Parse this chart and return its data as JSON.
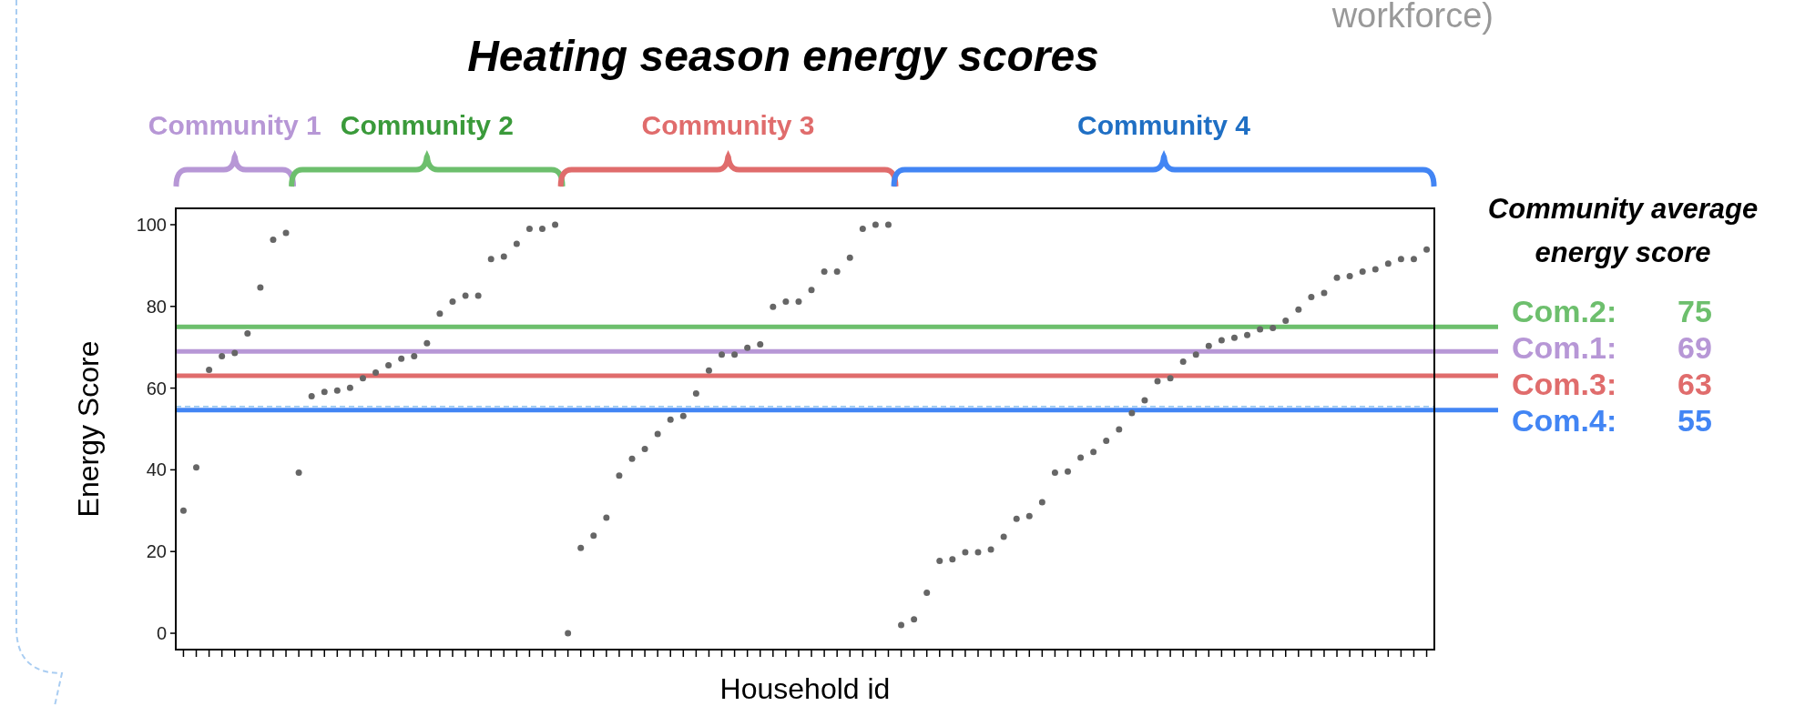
{
  "chart_data": {
    "type": "scatter",
    "title": "Heating season energy scores",
    "xlabel": "Household id",
    "ylabel": "Energy Score",
    "annotations": [
      "workforce)",
      "Community average energy score",
      "Community 1",
      "Community 2",
      "Community 3",
      "Community 4"
    ],
    "marker": "circle",
    "categories": [
      null,
      null,
      null,
      null,
      null,
      null,
      null,
      null,
      null,
      null,
      null,
      null,
      null,
      null,
      null,
      null,
      null,
      null,
      null,
      null,
      null,
      null,
      null,
      null,
      null,
      null,
      null,
      null,
      null,
      null,
      null,
      null,
      null,
      null,
      null,
      null,
      null,
      null,
      null,
      null,
      null,
      null,
      null,
      null,
      null,
      null,
      null,
      null,
      null,
      null,
      null,
      null,
      null,
      null,
      null,
      null,
      null,
      null,
      null,
      null,
      null,
      null,
      null,
      null,
      null,
      null,
      null,
      null,
      null,
      null,
      null,
      null,
      null,
      null,
      null,
      null,
      null,
      null,
      null,
      null,
      null,
      null,
      null,
      null,
      null,
      null,
      null,
      null,
      null,
      null,
      null,
      null,
      null,
      null,
      null,
      null,
      null,
      null
    ],
    "ylim": [
      -4,
      104
    ],
    "yticks": [
      0,
      20,
      40,
      60,
      80,
      100
    ],
    "series": [
      {
        "color": "#666666",
        "values": [
          30,
          40.6,
          64.5,
          67.8,
          68.6,
          73.4,
          84.6,
          96.3,
          98,
          39.3,
          58,
          59.1,
          59.4,
          60.1,
          62.4,
          63.8,
          65.6,
          67.2,
          67.8,
          71,
          78.2,
          81.2,
          82.6,
          82.6,
          91.6,
          92.2,
          95.3,
          99,
          99,
          100,
          0,
          20.9,
          23.9,
          28.3,
          38.6,
          42.7,
          45.1,
          48.8,
          52.3,
          53.2,
          58.7,
          64.3,
          68.2,
          68.2,
          69.9,
          70.7,
          79.9,
          81.2,
          81.2,
          84,
          88.5,
          88.5,
          91.9,
          99,
          100,
          100,
          2,
          3.4,
          9.9,
          17.7,
          18.1,
          19.8,
          19.8,
          20.5,
          23.6,
          28,
          28.7,
          32.1,
          39.3,
          39.6,
          43,
          44.4,
          47.1,
          49.9,
          53.9,
          57,
          61.7,
          62.4,
          66.5,
          68.2,
          70.3,
          71.7,
          72.3,
          73,
          74.4,
          74.7,
          76.5,
          79.2,
          82.3,
          83.3,
          87,
          87.4,
          88.5,
          89.1,
          90.5,
          91.6,
          91.6,
          93.9
        ]
      }
    ],
    "ref_lines": [
      {
        "axis": "y",
        "value": 75,
        "label": "Com.2:   75",
        "color": "#6dbf6d"
      },
      {
        "axis": "y",
        "value": 69,
        "label": "Com.1:   69",
        "color": "#b797d6"
      },
      {
        "axis": "y",
        "value": 63,
        "label": "Com.3:   63",
        "color": "#e06c6c"
      },
      {
        "axis": "y",
        "value": 54.6,
        "label": "Com.4:   55",
        "color": "#4285f4"
      },
      {
        "axis": "y",
        "value": 55.5,
        "color": "#8fc3f0",
        "line_style": "dashed"
      }
    ]
  }
}
